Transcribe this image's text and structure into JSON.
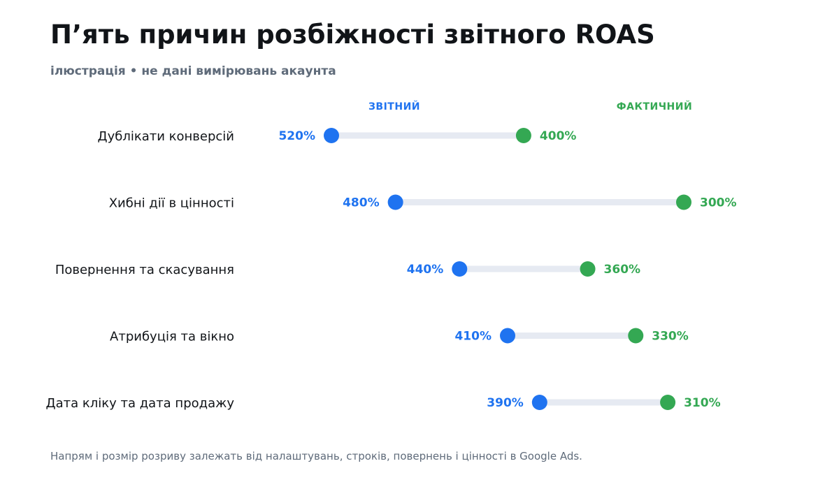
{
  "header": {
    "title": "П’ять причин розбіжності звітного ROAS",
    "subtitle": "ілюстрація  •  не дані вимірювань акаунта"
  },
  "legend": {
    "reported_label": "ЗВІТНИЙ",
    "actual_label": "ФАКТИЧНИЙ"
  },
  "footnote": "Напрям і розмір розриву залежать від налаштувань, строків, повернень і цінності в Google Ads.",
  "colors": {
    "reported": "#1f73f0",
    "actual": "#34a853",
    "connector": "#e6eaf2",
    "category_text": "#111418"
  },
  "chart_data": {
    "type": "dumbbell",
    "title": "П’ять причин розбіжності звітного ROAS",
    "subtitle": "ілюстрація  •  не дані вимірювань акаунта",
    "unit": "%",
    "categories": [
      "Дублікати конверсій",
      "Хибні дії в цінності",
      "Повернення та скасування",
      "Атрибуція та вікно",
      "Дата кліку та дата продажу"
    ],
    "series": [
      {
        "name": "ЗВІТНИЙ",
        "values": [
          520,
          480,
          440,
          410,
          390
        ]
      },
      {
        "name": "ФАКТИЧНИЙ",
        "values": [
          400,
          300,
          360,
          330,
          310
        ]
      }
    ],
    "value_labels": {
      "reported": [
        "520%",
        "480%",
        "440%",
        "410%",
        "390%"
      ],
      "actual": [
        "400%",
        "300%",
        "360%",
        "330%",
        "310%"
      ]
    },
    "xlim": [
      300,
      520
    ],
    "x_direction": "reversed",
    "grid": false,
    "legend_position": "top"
  }
}
